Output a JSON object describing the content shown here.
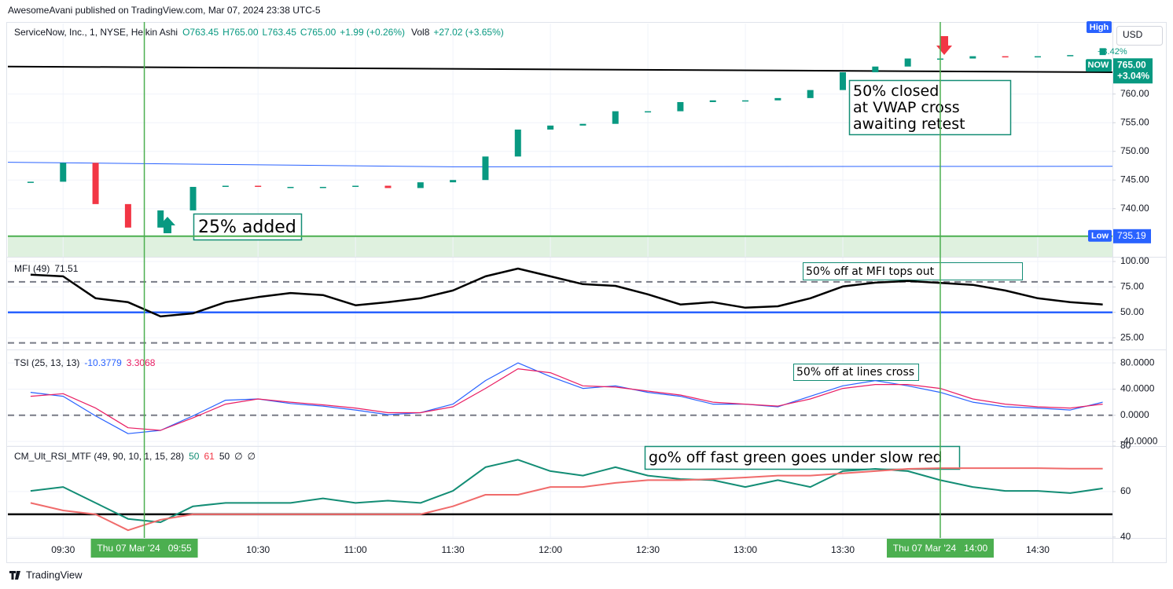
{
  "header": "AwesomeAvani published on TradingView.com, Mar 07, 2024 23:38 UTC-5",
  "footer": "TradingView",
  "markers": [
    {
      "time": "09:55",
      "label": "Thu 07 Mar '24   09:55"
    },
    {
      "time": "14:00",
      "label": "Thu 07 Mar '24   14:00"
    }
  ],
  "annotations": [
    "25% added",
    [
      "50% closed",
      "at VWAP cross",
      "awaiting retest"
    ],
    "50% off at MFI tops out",
    "50% off at lines cross",
    "go% off fast green goes under slow red"
  ],
  "chart_data": [
    {
      "type": "candlestick",
      "title": "ServiceNow, Inc., 1, NYSE, Heikin Ashi",
      "legend": [
        "O763.45",
        "H765.00",
        "L763.45",
        "C765.00",
        "+1.99 (+0.26%)",
        "Vol8",
        "+27.02 (+3.65%)"
      ],
      "up_color": "#089981",
      "down_color": "#f23645",
      "x": [
        "09:20",
        "09:30",
        "09:40",
        "09:50",
        "10:00",
        "10:10",
        "10:20",
        "10:30",
        "10:40",
        "10:50",
        "11:00",
        "11:10",
        "11:20",
        "11:30",
        "11:40",
        "11:50",
        "12:00",
        "12:10",
        "12:20",
        "12:30",
        "12:40",
        "12:50",
        "13:00",
        "13:10",
        "13:20",
        "13:30",
        "13:40",
        "13:50",
        "14:00",
        "14:10",
        "14:20",
        "14:30",
        "14:40",
        "14:50"
      ],
      "values": [
        744.7,
        748,
        740.8,
        736.7,
        739.7,
        743.8,
        744,
        743.8,
        743.8,
        743.8,
        744,
        743.6,
        744.6,
        745,
        749.1,
        753.8,
        754.5,
        754.8,
        757,
        757,
        758.6,
        758.9,
        758.9,
        759.3,
        760.7,
        763.8,
        764.8,
        766.2,
        766.2,
        766.6,
        766.4,
        766.6,
        766.8,
        768
      ],
      "xlim": [
        "09:13",
        "14:53"
      ],
      "ylim": [
        731.6,
        772.3
      ],
      "yticks": [
        {
          "value": 740,
          "label": "740.00"
        },
        {
          "value": 745,
          "label": "745.00"
        },
        {
          "value": 750,
          "label": "750.00"
        },
        {
          "value": 755,
          "label": "755.00"
        },
        {
          "value": 760,
          "label": "760.00"
        }
      ],
      "lines": [
        {
          "color": "#000000",
          "x": [
            "09:13",
            "14:53"
          ],
          "values": [
            764.8,
            763.8
          ]
        },
        {
          "color": "#2962ff",
          "x": [
            "09:13",
            "11:30",
            "14:53"
          ],
          "values": [
            748.1,
            747.3,
            747.4
          ]
        }
      ],
      "low": {
        "label": "Low",
        "value": 735.19
      },
      "high": {
        "label": "High",
        "change": "+3.42%"
      },
      "now": {
        "label": "NOW",
        "value": 765,
        "value_label": "765.00",
        "change": "+3.04%"
      },
      "currency": "USD"
    },
    {
      "type": "line",
      "title": "MFI (49)",
      "legend_values": [
        71.51
      ],
      "x": [
        "09:20",
        "09:30",
        "09:40",
        "09:50",
        "10:00",
        "10:10",
        "10:20",
        "10:30",
        "10:40",
        "10:50",
        "11:00",
        "11:10",
        "11:20",
        "11:30",
        "11:40",
        "11:50",
        "12:00",
        "12:10",
        "12:20",
        "12:30",
        "12:40",
        "12:50",
        "13:00",
        "13:10",
        "13:20",
        "13:30",
        "13:40",
        "13:50",
        "14:00",
        "14:10",
        "14:20",
        "14:30",
        "14:40",
        "14:50"
      ],
      "series": [
        {
          "color": "#000000",
          "values": [
            87,
            85.4,
            63.8,
            60,
            46,
            49,
            60,
            65,
            69,
            67,
            57,
            60,
            63.8,
            71.5,
            85.4,
            93,
            85.4,
            77.7,
            76,
            67.7,
            57.7,
            60,
            54.6,
            56,
            63.8,
            75.4,
            79.2,
            80.8,
            79,
            77,
            71.5,
            63.8,
            60,
            57.7
          ]
        }
      ],
      "levels": [
        {
          "value": 80,
          "color": "#787b86",
          "style": "dashed"
        },
        {
          "value": 50,
          "color": "#2962ff",
          "style": "solid"
        },
        {
          "value": 20,
          "color": "#787b86",
          "style": "dashed"
        }
      ],
      "xlim": [
        "09:13",
        "14:53"
      ],
      "ylim": [
        13.5,
        104.6
      ],
      "yticks": [
        {
          "value": 100,
          "label": "100.00"
        },
        {
          "value": 75,
          "label": "75.00"
        },
        {
          "value": 50,
          "label": "50.00"
        },
        {
          "value": 25,
          "label": "25.00"
        }
      ]
    },
    {
      "type": "line",
      "title": "TSI (25, 13, 13)",
      "legend_values": [
        -10.3779,
        3.3068
      ],
      "x": [
        "09:20",
        "09:30",
        "09:40",
        "09:50",
        "10:00",
        "10:10",
        "10:20",
        "10:30",
        "10:40",
        "10:50",
        "11:00",
        "11:10",
        "11:20",
        "11:30",
        "11:40",
        "11:50",
        "12:00",
        "12:10",
        "12:20",
        "12:30",
        "12:40",
        "12:50",
        "13:00",
        "13:10",
        "13:20",
        "13:30",
        "13:40",
        "13:50",
        "14:00",
        "14:10",
        "14:20",
        "14:30",
        "14:40",
        "14:50"
      ],
      "series": [
        {
          "color": "#2962ff",
          "values": [
            35,
            29,
            -1,
            -28,
            -23,
            -1,
            23,
            25,
            18,
            14,
            8,
            1,
            4,
            17,
            53,
            80,
            59,
            41,
            45,
            35,
            29,
            17,
            17,
            13,
            29,
            45,
            53,
            45,
            35,
            20,
            13,
            11,
            8,
            20
          ]
        },
        {
          "color": "#e91e63",
          "values": [
            29,
            33,
            11,
            -19,
            -23,
            -4,
            17,
            25,
            20,
            16,
            11,
            4,
            4,
            13,
            41,
            71,
            65,
            45,
            43,
            37,
            31,
            20,
            17,
            14,
            25,
            41,
            47,
            47,
            41,
            25,
            17,
            13,
            11,
            17
          ]
        }
      ],
      "levels": [
        {
          "value": 0,
          "color": "#787b86",
          "style": "dashed"
        }
      ],
      "xlim": [
        "09:13",
        "14:53"
      ],
      "ylim": [
        -47,
        100.5
      ],
      "yticks": [
        {
          "value": 80,
          "label": "80.0000"
        },
        {
          "value": 40,
          "label": "40.0000"
        },
        {
          "value": 0,
          "label": "0.0000"
        },
        {
          "value": -40,
          "label": "-40.0000"
        }
      ]
    },
    {
      "type": "line",
      "title": "CM_Ult_RSI_MTF (49, 90, 10, 1, 15, 28)",
      "legend_values": [
        50,
        61,
        50,
        "∅",
        "∅"
      ],
      "x": [
        "09:20",
        "09:30",
        "09:40",
        "09:50",
        "10:00",
        "10:10",
        "10:20",
        "10:30",
        "10:40",
        "10:50",
        "11:00",
        "11:10",
        "11:20",
        "11:30",
        "11:40",
        "11:50",
        "12:00",
        "12:10",
        "12:20",
        "12:30",
        "12:40",
        "12:50",
        "13:00",
        "13:10",
        "13:20",
        "13:30",
        "13:40",
        "13:50",
        "14:00",
        "14:10",
        "14:20",
        "14:30",
        "14:40",
        "14:50"
      ],
      "series": [
        {
          "color": "#138d75",
          "values": [
            60.3,
            62,
            55,
            48,
            46.5,
            53.5,
            55,
            55,
            55,
            57,
            55,
            56,
            55,
            60.3,
            70.7,
            74,
            69,
            67,
            70.7,
            67,
            65.5,
            65,
            62,
            65,
            62,
            69,
            70,
            69,
            65,
            62,
            60.3,
            60.3,
            59.3,
            61.4
          ]
        },
        {
          "color": "#f06b6b",
          "values": [
            55,
            51.7,
            50,
            43,
            47.6,
            50,
            50,
            50,
            50,
            50,
            50,
            50,
            50,
            53.5,
            58.6,
            58.6,
            62,
            62,
            63.8,
            65,
            65,
            65.5,
            66.2,
            67,
            67,
            68,
            69,
            70,
            70.3,
            70.3,
            70.3,
            70.3,
            70.1,
            70.1
          ]
        }
      ],
      "levels": [
        {
          "value": 50,
          "color": "#000000",
          "style": "solid"
        }
      ],
      "xlim": [
        "09:13",
        "14:53"
      ],
      "ylim": [
        39.6,
        80
      ],
      "yticks": [
        80,
        60,
        40
      ],
      "xticks": [
        "09:30",
        "10:30",
        "11:00",
        "11:30",
        "12:00",
        "12:30",
        "13:00",
        "13:30",
        "14:30"
      ]
    }
  ]
}
